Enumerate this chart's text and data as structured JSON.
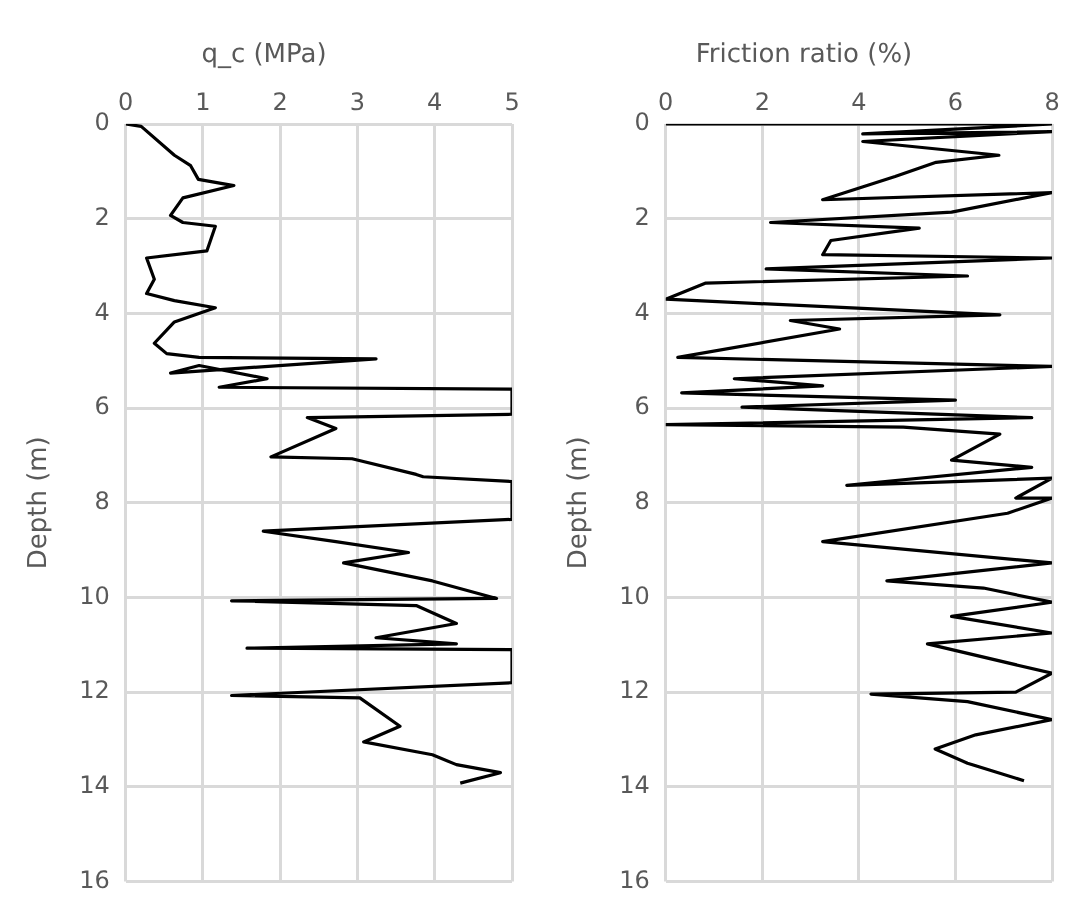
{
  "chart_data": [
    {
      "type": "line",
      "title": "q_c (MPa)",
      "ylabel": "Depth (m)",
      "xlim": [
        0,
        5
      ],
      "xticks": [
        0,
        1,
        2,
        3,
        4,
        5
      ],
      "ylim": [
        16,
        0
      ],
      "yticks": [
        0,
        2,
        4,
        6,
        8,
        10,
        12,
        14,
        16
      ],
      "grid": true,
      "legend": false,
      "marker": "none",
      "line_style": "solid",
      "series": [
        {
          "color": "#000000",
          "x": [
            0,
            0.2,
            0.63,
            0.84,
            0.94,
            1.4,
            0.74,
            0.58,
            0.74,
            1.16,
            1.05,
            0.27,
            0.37,
            0.27,
            0.63,
            1.16,
            0.63,
            0.37,
            0.53,
            0.95,
            3.24,
            0.58,
            0.95,
            1.83,
            1.21,
            5,
            5,
            2.35,
            2.72,
            1.88,
            2.93,
            3.76,
            3.85,
            5,
            5,
            1.78,
            2.72,
            3.66,
            2.82,
            3.97,
            4.8,
            1.37,
            3.76,
            4.28,
            3.24,
            4.28,
            1.57,
            5,
            5,
            1.37,
            3.03,
            3.55,
            3.08,
            3.97,
            4.28,
            4.85,
            4.33
          ],
          "values": [
            0,
            0.05,
            0.66,
            0.88,
            1.17,
            1.3,
            1.56,
            1.93,
            2.08,
            2.16,
            2.68,
            2.83,
            3.28,
            3.58,
            3.73,
            3.88,
            4.18,
            4.63,
            4.85,
            4.93,
            4.96,
            5.26,
            5.1,
            5.38,
            5.56,
            5.6,
            6.13,
            6.2,
            6.43,
            7.03,
            7.07,
            7.4,
            7.45,
            7.55,
            8.35,
            8.6,
            8.82,
            9.05,
            9.27,
            9.65,
            10.02,
            10.07,
            10.17,
            10.55,
            10.85,
            10.98,
            11.07,
            11.1,
            11.8,
            12.07,
            12.12,
            12.72,
            13.05,
            13.32,
            13.53,
            13.7,
            13.92
          ]
        }
      ]
    },
    {
      "type": "line",
      "title": "Friction ratio (%)",
      "ylabel": "Depth (m)",
      "xlim": [
        0,
        8
      ],
      "xticks": [
        0,
        2,
        4,
        6,
        8
      ],
      "ylim": [
        16,
        0
      ],
      "yticks": [
        0,
        2,
        4,
        6,
        8,
        10,
        12,
        14,
        16
      ],
      "grid": true,
      "legend": false,
      "marker": "none",
      "line_style": "solid",
      "series": [
        {
          "color": "#000000",
          "x": [
            0,
            8,
            4.08,
            8,
            4.08,
            6.9,
            5.6,
            4.75,
            3.25,
            8,
            5.92,
            2.17,
            5.25,
            3.42,
            3.25,
            8,
            2.08,
            6.25,
            0.83,
            0,
            6.92,
            2.58,
            3.6,
            0.25,
            8,
            1.42,
            3.25,
            0.33,
            6,
            1.58,
            7.58,
            0,
            4.92,
            6.92,
            5.92,
            7.58,
            3.75,
            8,
            7.25,
            8,
            7.08,
            3.25,
            8,
            4.58,
            6.58,
            8,
            5.92,
            8,
            5.42,
            8,
            7.25,
            4.25,
            6.25,
            8,
            6.42,
            5.58,
            6.25,
            7.42
          ],
          "values": [
            0,
            0,
            0.21,
            0.16,
            0.37,
            0.66,
            0.81,
            1.11,
            1.6,
            1.45,
            1.86,
            2.08,
            2.2,
            2.46,
            2.76,
            2.83,
            3.06,
            3.21,
            3.36,
            3.7,
            4.03,
            4.15,
            4.33,
            4.93,
            5.12,
            5.38,
            5.53,
            5.68,
            5.83,
            5.98,
            6.2,
            6.35,
            6.4,
            6.55,
            7.1,
            7.25,
            7.63,
            7.48,
            7.9,
            7.9,
            8.22,
            8.82,
            9.27,
            9.65,
            9.8,
            10.1,
            10.4,
            10.75,
            10.98,
            11.6,
            12.0,
            12.04,
            12.2,
            12.58,
            12.9,
            13.2,
            13.5,
            13.87
          ]
        }
      ]
    }
  ]
}
